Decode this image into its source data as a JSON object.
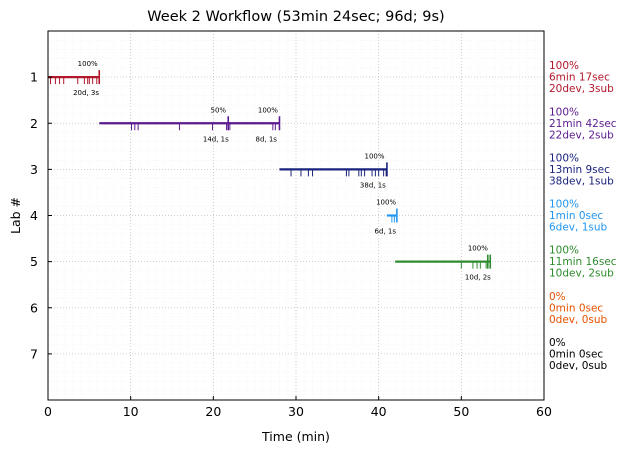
{
  "chart_data": {
    "type": "timeline",
    "title": "Week 2 Workflow (53min 24sec; 96d; 9s)",
    "xlabel": "Time (min)",
    "ylabel": "Lab #",
    "xlim": [
      0,
      60
    ],
    "ylim": [
      8,
      0
    ],
    "x_ticks": [
      0,
      10,
      20,
      30,
      40,
      50,
      60
    ],
    "y_ticks": [
      1,
      2,
      3,
      4,
      5,
      6,
      7
    ],
    "grid": true,
    "labs": [
      {
        "lab": 1,
        "color": "#b2182b",
        "segments": [
          [
            0,
            6.2
          ]
        ],
        "dev_ticks": [
          0.3,
          0.9,
          1.4,
          1.9,
          3.6,
          4.4,
          4.8,
          5.0,
          5.4,
          5.9
        ],
        "sub_ticks": [
          6.2
        ],
        "annotations": [
          {
            "x": 4.8,
            "position": "above",
            "text": "100%"
          },
          {
            "x": 4.6,
            "position": "below",
            "text": "20d, 3s"
          }
        ],
        "summary": [
          "100%",
          "6min 17sec",
          "20dev, 3sub"
        ]
      },
      {
        "lab": 2,
        "color": "#5b1a8f",
        "segments": [
          [
            6.2,
            28.0
          ]
        ],
        "dev_ticks": [
          10.1,
          10.5,
          10.9,
          15.9,
          19.9,
          21.6,
          22.0,
          27.2,
          27.5
        ],
        "sub_ticks": [
          21.8,
          28.0
        ],
        "annotations": [
          {
            "x": 20.6,
            "position": "above",
            "text": "50%"
          },
          {
            "x": 26.6,
            "position": "above",
            "text": "100%"
          },
          {
            "x": 20.3,
            "position": "below",
            "text": "14d, 1s"
          },
          {
            "x": 26.4,
            "position": "below",
            "text": "8d, 1s"
          }
        ],
        "summary": [
          "100%",
          "21min 42sec",
          "22dev, 2sub"
        ]
      },
      {
        "lab": 3,
        "color": "#1a237e",
        "segments": [
          [
            28.0,
            41.0
          ]
        ],
        "dev_ticks": [
          29.4,
          30.6,
          31.5,
          32.0,
          36.1,
          36.4,
          37.6,
          37.9,
          38.3,
          39.2,
          39.6,
          40.0,
          40.6,
          40.9
        ],
        "sub_ticks": [
          41.0
        ],
        "annotations": [
          {
            "x": 39.5,
            "position": "above",
            "text": "100%"
          },
          {
            "x": 39.3,
            "position": "below",
            "text": "38d, 1s"
          }
        ],
        "summary": [
          "100%",
          "13min 9sec",
          "38dev, 1sub"
        ]
      },
      {
        "lab": 4,
        "color": "#2196f3",
        "segments": [
          [
            41.0,
            42.2
          ]
        ],
        "dev_ticks": [
          41.6,
          41.9
        ],
        "sub_ticks": [
          42.2
        ],
        "annotations": [
          {
            "x": 40.9,
            "position": "above",
            "text": "100%"
          },
          {
            "x": 40.8,
            "position": "below",
            "text": "6d, 1s"
          }
        ],
        "summary": [
          "100%",
          "1min 0sec",
          "6dev, 1sub"
        ]
      },
      {
        "lab": 5,
        "color": "#2e8b2e",
        "segments": [
          [
            42.0,
            53.5
          ]
        ],
        "dev_ticks": [
          50.0,
          51.4,
          51.9,
          52.3,
          53.0
        ],
        "sub_ticks": [
          53.2,
          53.5
        ],
        "annotations": [
          {
            "x": 52.0,
            "position": "above",
            "text": "100%"
          },
          {
            "x": 52.0,
            "position": "below",
            "text": "10d, 2s"
          }
        ],
        "summary": [
          "100%",
          "11min 16sec",
          "10dev, 2sub"
        ]
      },
      {
        "lab": 6,
        "color": "#e65100",
        "segments": [],
        "dev_ticks": [],
        "sub_ticks": [],
        "annotations": [],
        "summary": [
          "0%",
          "0min 0sec",
          "0dev, 0sub"
        ]
      },
      {
        "lab": 7,
        "color": "#000000",
        "segments": [],
        "dev_ticks": [],
        "sub_ticks": [],
        "annotations": [],
        "summary": [
          "0%",
          "0min 0sec",
          "0dev, 0sub"
        ]
      }
    ]
  }
}
